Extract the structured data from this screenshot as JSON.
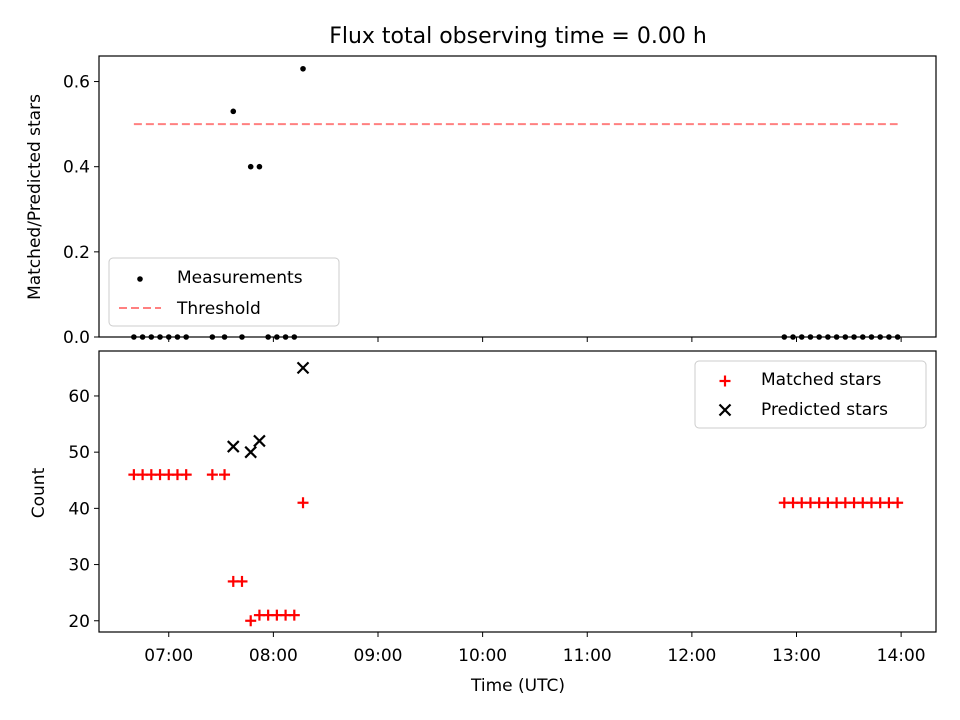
{
  "figure": {
    "title": "Flux total observing time = 0.00 h"
  },
  "colors": {
    "measurements": "#000000",
    "threshold": "#ff8080",
    "matched": "#ff0000",
    "predicted": "#000000"
  },
  "chart_data": [
    {
      "type": "scatter",
      "ylabel": "Matched/Predicted stars",
      "xlim": [
        "06:20",
        "14:20"
      ],
      "ylim": [
        0,
        0.66
      ],
      "yticks": [
        0.0,
        0.2,
        0.4,
        0.6
      ],
      "ytick_labels": [
        "0.0",
        "0.2",
        "0.4",
        "0.6"
      ],
      "legend_loc": "lower-left",
      "series": [
        {
          "name": "Measurements",
          "marker": "dot",
          "points": [
            [
              "06:40",
              0
            ],
            [
              "06:45",
              0
            ],
            [
              "06:50",
              0
            ],
            [
              "06:55",
              0
            ],
            [
              "07:00",
              0
            ],
            [
              "07:05",
              0
            ],
            [
              "07:10",
              0
            ],
            [
              "07:25",
              0
            ],
            [
              "07:32",
              0
            ],
            [
              "07:37",
              0.53
            ],
            [
              "07:42",
              0
            ],
            [
              "07:47",
              0.4
            ],
            [
              "07:52",
              0.4
            ],
            [
              "07:57",
              0
            ],
            [
              "08:02",
              0
            ],
            [
              "08:07",
              0
            ],
            [
              "08:12",
              0
            ],
            [
              "08:17",
              0.63
            ],
            [
              "12:53",
              0
            ],
            [
              "12:58",
              0
            ],
            [
              "13:03",
              0
            ],
            [
              "13:08",
              0
            ],
            [
              "13:13",
              0
            ],
            [
              "13:18",
              0
            ],
            [
              "13:23",
              0
            ],
            [
              "13:28",
              0
            ],
            [
              "13:33",
              0
            ],
            [
              "13:38",
              0
            ],
            [
              "13:43",
              0
            ],
            [
              "13:48",
              0
            ],
            [
              "13:53",
              0
            ],
            [
              "13:58",
              0
            ]
          ]
        },
        {
          "name": "Threshold",
          "line": "dashed",
          "points": [
            [
              "06:40",
              0.5
            ],
            [
              "13:58",
              0.5
            ]
          ]
        }
      ]
    },
    {
      "type": "scatter",
      "xlabel": "Time (UTC)",
      "ylabel": "Count",
      "xlim": [
        "06:20",
        "14:20"
      ],
      "ylim": [
        18,
        68
      ],
      "xticks": [
        "07:00",
        "08:00",
        "09:00",
        "10:00",
        "11:00",
        "12:00",
        "13:00",
        "14:00"
      ],
      "yticks": [
        20,
        30,
        40,
        50,
        60
      ],
      "legend_loc": "top-right",
      "series": [
        {
          "name": "Matched stars",
          "marker": "plus",
          "points": [
            [
              "06:40",
              46
            ],
            [
              "06:45",
              46
            ],
            [
              "06:50",
              46
            ],
            [
              "06:55",
              46
            ],
            [
              "07:00",
              46
            ],
            [
              "07:05",
              46
            ],
            [
              "07:10",
              46
            ],
            [
              "07:25",
              46
            ],
            [
              "07:32",
              46
            ],
            [
              "07:37",
              27
            ],
            [
              "07:42",
              27
            ],
            [
              "07:47",
              20
            ],
            [
              "07:52",
              21
            ],
            [
              "07:57",
              21
            ],
            [
              "08:02",
              21
            ],
            [
              "08:07",
              21
            ],
            [
              "08:12",
              21
            ],
            [
              "08:17",
              41
            ],
            [
              "12:53",
              41
            ],
            [
              "12:58",
              41
            ],
            [
              "13:03",
              41
            ],
            [
              "13:08",
              41
            ],
            [
              "13:13",
              41
            ],
            [
              "13:18",
              41
            ],
            [
              "13:23",
              41
            ],
            [
              "13:28",
              41
            ],
            [
              "13:33",
              41
            ],
            [
              "13:38",
              41
            ],
            [
              "13:43",
              41
            ],
            [
              "13:48",
              41
            ],
            [
              "13:53",
              41
            ],
            [
              "13:58",
              41
            ]
          ]
        },
        {
          "name": "Predicted stars",
          "marker": "x",
          "points": [
            [
              "07:37",
              51
            ],
            [
              "07:47",
              50
            ],
            [
              "07:52",
              52
            ],
            [
              "08:17",
              65
            ]
          ]
        }
      ]
    }
  ]
}
